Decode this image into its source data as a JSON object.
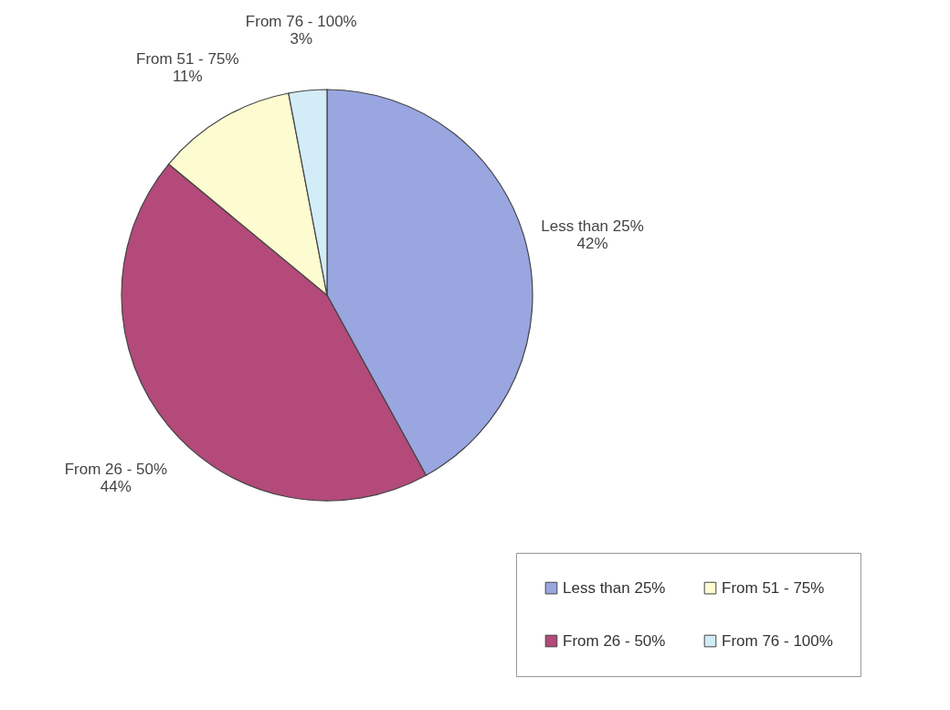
{
  "chart_data": {
    "type": "pie",
    "categories": [
      "Less than 25%",
      "From 26 - 50%",
      "From 51 - 75%",
      "From 76 - 100%"
    ],
    "values": [
      42,
      44,
      11,
      3
    ],
    "value_labels": [
      "42%",
      "44%",
      "11%",
      "3%"
    ],
    "colors": [
      "#9aa6e0",
      "#b34a7a",
      "#fdfbd0",
      "#d2ecf8"
    ],
    "legend": "bottom right"
  }
}
